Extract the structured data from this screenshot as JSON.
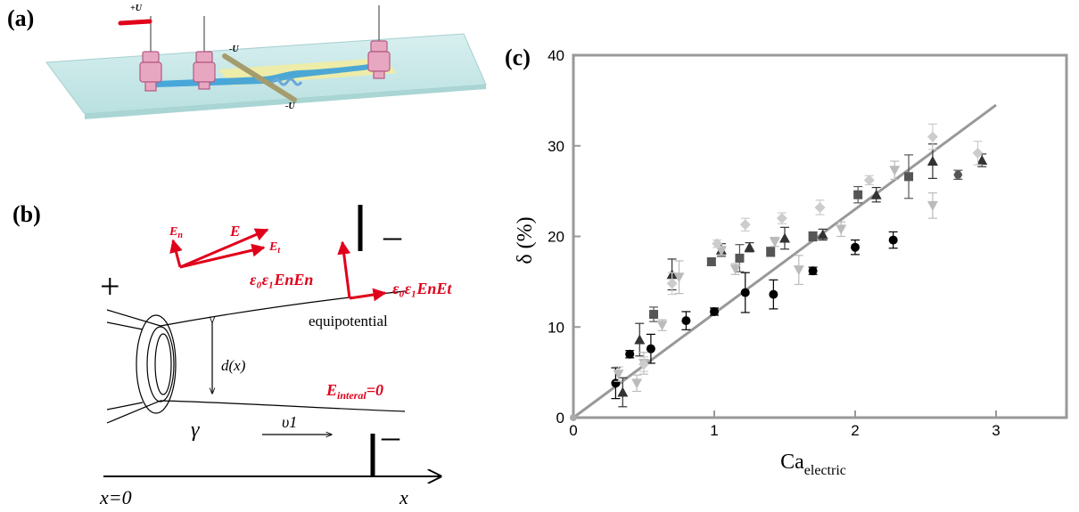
{
  "panel_labels": {
    "a": "(a)",
    "b": "(b)",
    "c": "(c)"
  },
  "panel_a": {
    "plus_u": "+U",
    "minus_u_top": "-U",
    "minus_u_bottom": "-U"
  },
  "panel_b": {
    "plus_sign": "+",
    "minus_top": "–",
    "minus_bottom": "–",
    "E_n": "E",
    "E_n_sub": "n",
    "E": "E",
    "E_t": "E",
    "E_t_sub": "t",
    "stress_normal": "ε₀ε₁EnEn",
    "stress_tangent": "ε₀ε₁EnEt",
    "equipotential": "equipotential",
    "d_x": "d(x)",
    "E_internal": "E",
    "E_internal_sub": "interal",
    "E_internal_val": "=0",
    "gamma": "γ",
    "v1": "υ1",
    "x0": "x=0",
    "x_axis": "x"
  },
  "colors": {
    "red": "#e0001b",
    "fit_line": "#999999",
    "axis": "#999999"
  },
  "chart_data": {
    "type": "scatter",
    "xlabel": "Ca",
    "xlabel_sub": "electric",
    "ylabel": "δ (%)",
    "xlim": [
      0,
      3.5
    ],
    "ylim": [
      0,
      40
    ],
    "xticks": [
      0,
      1,
      2,
      3
    ],
    "yticks": [
      0,
      10,
      20,
      30,
      40
    ],
    "fit_line": {
      "x": [
        0,
        3.0
      ],
      "y": [
        0,
        34.5
      ]
    },
    "series": [
      {
        "marker": "circle",
        "color": "#000000",
        "points": [
          [
            0.3,
            3.8,
            1.7
          ],
          [
            0.4,
            7.0,
            0.4
          ],
          [
            0.55,
            7.6,
            1.6
          ],
          [
            0.8,
            10.7,
            1.0
          ],
          [
            1.0,
            11.7,
            0.4
          ],
          [
            1.22,
            13.8,
            2.2
          ],
          [
            1.42,
            13.6,
            1.6
          ],
          [
            1.7,
            16.2,
            0.4
          ],
          [
            2.0,
            18.8,
            0.8
          ],
          [
            2.27,
            19.6,
            0.9
          ]
        ]
      },
      {
        "marker": "hexagon",
        "color": "#555555",
        "points": [
          [
            2.73,
            26.8,
            0.5
          ]
        ]
      },
      {
        "marker": "square",
        "color": "#555555",
        "points": [
          [
            0.57,
            11.4,
            0.8
          ],
          [
            0.98,
            17.2,
            0.4
          ],
          [
            1.18,
            17.6,
            1.5
          ],
          [
            1.4,
            18.3,
            0.5
          ],
          [
            1.7,
            20.0,
            0.5
          ],
          [
            2.02,
            24.6,
            0.9
          ],
          [
            2.38,
            26.6,
            2.4
          ]
        ]
      },
      {
        "marker": "triangle-up",
        "color": "#333333",
        "points": [
          [
            0.35,
            2.8,
            1.6
          ],
          [
            0.47,
            8.6,
            1.8
          ],
          [
            0.7,
            15.8,
            1.7
          ],
          [
            1.05,
            18.5,
            0.7
          ],
          [
            1.25,
            18.8,
            0.5
          ],
          [
            1.5,
            19.8,
            1.2
          ],
          [
            1.77,
            20.2,
            0.6
          ],
          [
            2.15,
            24.6,
            0.8
          ],
          [
            2.55,
            28.3,
            1.9
          ],
          [
            2.9,
            28.4,
            0.7
          ]
        ]
      },
      {
        "marker": "triangle-down",
        "color": "#bbbbbb",
        "points": [
          [
            0.32,
            4.8,
            0.8
          ],
          [
            0.45,
            3.8,
            0.9
          ],
          [
            0.5,
            6.0,
            1.2
          ],
          [
            0.63,
            10.2,
            0.6
          ],
          [
            0.75,
            15.5,
            1.8
          ],
          [
            1.05,
            18.4,
            0.5
          ],
          [
            1.15,
            16.4,
            0.6
          ],
          [
            1.43,
            19.4,
            0.5
          ],
          [
            1.6,
            16.3,
            1.6
          ],
          [
            1.9,
            20.8,
            0.8
          ],
          [
            2.28,
            27.3,
            1.0
          ],
          [
            2.55,
            23.4,
            1.4
          ]
        ]
      },
      {
        "marker": "diamond",
        "color": "#cccccc",
        "points": [
          [
            0.5,
            5.9,
            0.8
          ],
          [
            0.7,
            14.8,
            1.2
          ],
          [
            1.02,
            19.2,
            0.4
          ],
          [
            1.22,
            21.3,
            0.7
          ],
          [
            1.48,
            22.0,
            0.6
          ],
          [
            1.75,
            23.2,
            0.8
          ],
          [
            2.1,
            26.2,
            0.5
          ],
          [
            2.55,
            31.0,
            1.4
          ],
          [
            2.87,
            29.2,
            1.3
          ]
        ]
      }
    ]
  }
}
